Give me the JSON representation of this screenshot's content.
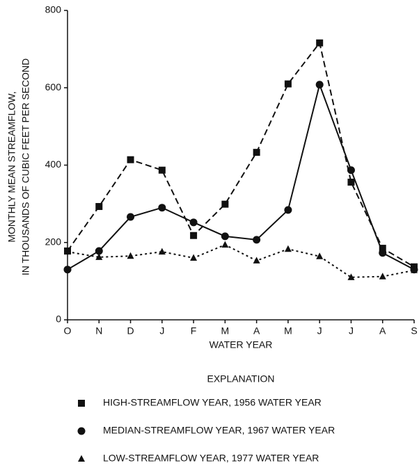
{
  "chart_data": {
    "type": "line",
    "ylabel": [
      "MONTHLY MEAN STREAMFLOW,",
      "IN THOUSANDS OF CUBIC FEET PER SECOND"
    ],
    "xlabel": "WATER YEAR",
    "legend_title": "EXPLANATION",
    "categories": [
      "O",
      "N",
      "D",
      "J",
      "F",
      "M",
      "A",
      "M",
      "J",
      "J",
      "A",
      "S"
    ],
    "ylim": [
      0,
      800
    ],
    "yticks": [
      0,
      200,
      400,
      600,
      800
    ],
    "series": [
      {
        "name": "HIGH-STREAMFLOW YEAR, 1956 WATER YEAR",
        "color": "#111111",
        "line_style": "dashed",
        "marker": "square",
        "values": [
          178,
          293,
          414,
          387,
          218,
          299,
          433,
          610,
          716,
          356,
          185,
          137
        ]
      },
      {
        "name": "MEDIAN-STREAMFLOW YEAR, 1967 WATER YEAR",
        "color": "#111111",
        "line_style": "solid",
        "marker": "circle",
        "values": [
          130,
          178,
          266,
          290,
          252,
          216,
          207,
          284,
          608,
          387,
          173,
          130
        ]
      },
      {
        "name": "LOW-STREAMFLOW YEAR, 1977 WATER YEAR",
        "color": "#111111",
        "line_style": "dotted",
        "marker": "triangle",
        "values": [
          176,
          162,
          165,
          176,
          160,
          194,
          153,
          183,
          164,
          110,
          112,
          128
        ]
      }
    ]
  }
}
